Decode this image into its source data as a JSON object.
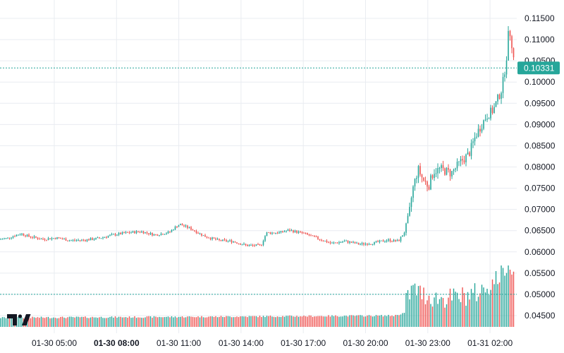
{
  "chart_data": {
    "type": "candlestick",
    "title": "",
    "xlabel": "",
    "ylabel": "",
    "colors": {
      "up": "#26a69a",
      "down": "#ef5350",
      "grid": "#e9ecf1",
      "last_price_bg": "#26a69a",
      "last_price_line": "#26a69a",
      "volume_line": "#26a69a"
    },
    "y_axis": {
      "range": [
        0.0435,
        0.1165
      ],
      "ticks": [
        "0.04500",
        "0.05000",
        "0.05500",
        "0.06000",
        "0.06500",
        "0.07000",
        "0.07500",
        "0.08000",
        "0.08500",
        "0.09000",
        "0.09500",
        "0.10000",
        "0.10500",
        "0.11000",
        "0.11500"
      ],
      "position": "right"
    },
    "x_axis": {
      "ticks": [
        {
          "label": "01-30 05:00",
          "bold": false
        },
        {
          "label": "01-30 08:00",
          "bold": true
        },
        {
          "label": "01-30 11:00",
          "bold": false
        },
        {
          "label": "01-30 14:00",
          "bold": false
        },
        {
          "label": "01-30 17:00",
          "bold": false
        },
        {
          "label": "01-30 20:00",
          "bold": false
        },
        {
          "label": "01-30 23:00",
          "bold": false
        },
        {
          "label": "01-31 02:00",
          "bold": false
        }
      ]
    },
    "last_price": "0.10331",
    "volume_ref_level": 0.05,
    "price_anchors": [
      [
        0,
        0.063
      ],
      [
        10,
        0.0632
      ],
      [
        20,
        0.0638
      ],
      [
        30,
        0.0643
      ],
      [
        40,
        0.0637
      ],
      [
        60,
        0.063
      ],
      [
        80,
        0.0633
      ],
      [
        100,
        0.0627
      ],
      [
        120,
        0.0628
      ],
      [
        140,
        0.0632
      ],
      [
        160,
        0.064
      ],
      [
        180,
        0.0645
      ],
      [
        200,
        0.0648
      ],
      [
        220,
        0.064
      ],
      [
        240,
        0.0646
      ],
      [
        250,
        0.066
      ],
      [
        255,
        0.0665
      ],
      [
        270,
        0.0655
      ],
      [
        290,
        0.0637
      ],
      [
        310,
        0.0627
      ],
      [
        330,
        0.0625
      ],
      [
        350,
        0.0615
      ],
      [
        370,
        0.0615
      ],
      [
        378,
        0.0645
      ],
      [
        395,
        0.0645
      ],
      [
        410,
        0.0651
      ],
      [
        430,
        0.0644
      ],
      [
        450,
        0.0632
      ],
      [
        470,
        0.062
      ],
      [
        490,
        0.0625
      ],
      [
        510,
        0.0618
      ],
      [
        530,
        0.0621
      ],
      [
        550,
        0.0628
      ],
      [
        565,
        0.0625
      ],
      [
        575,
        0.065
      ],
      [
        580,
        0.0685
      ],
      [
        585,
        0.0745
      ],
      [
        593,
        0.0795
      ],
      [
        600,
        0.077
      ],
      [
        608,
        0.0755
      ],
      [
        615,
        0.079
      ],
      [
        625,
        0.0795
      ],
      [
        640,
        0.0785
      ],
      [
        655,
        0.0815
      ],
      [
        665,
        0.083
      ],
      [
        675,
        0.0875
      ],
      [
        690,
        0.092
      ],
      [
        700,
        0.0935
      ],
      [
        712,
        0.0985
      ],
      [
        718,
        0.105
      ],
      [
        722,
        0.113
      ],
      [
        727,
        0.108
      ],
      [
        730,
        0.1033
      ]
    ],
    "volume_anchors": [
      [
        0,
        0.0443
      ],
      [
        250,
        0.0445
      ],
      [
        560,
        0.0448
      ],
      [
        575,
        0.0455
      ],
      [
        585,
        0.049
      ],
      [
        600,
        0.0475
      ],
      [
        620,
        0.0465
      ],
      [
        650,
        0.0468
      ],
      [
        680,
        0.048
      ],
      [
        700,
        0.0505
      ],
      [
        715,
        0.053
      ],
      [
        722,
        0.056
      ],
      [
        728,
        0.054
      ]
    ]
  }
}
